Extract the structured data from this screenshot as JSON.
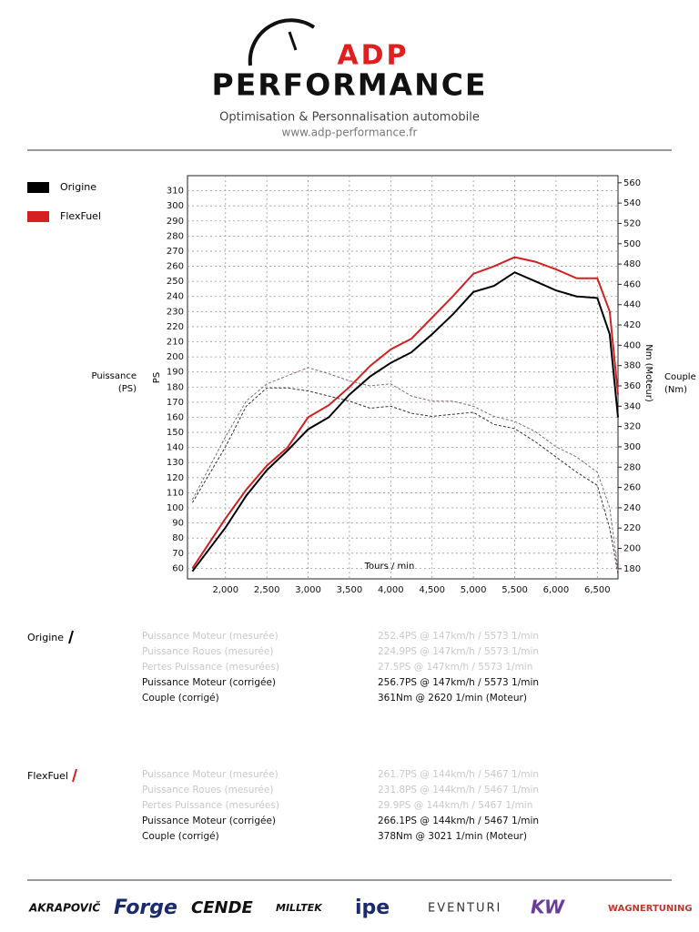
{
  "header": {
    "logo_top": "ADP",
    "logo_main": "PERFORMANCE",
    "tagline": "Optimisation & Personnalisation automobile",
    "url": "www.adp-performance.fr"
  },
  "chart_data": {
    "type": "line",
    "x_label": "Tours / min",
    "y_label": "PS",
    "y_title": [
      "Puissance",
      "(PS)"
    ],
    "y2_label": "Nm (Moteur)",
    "y2_title": [
      "Couple",
      "(Nm)"
    ],
    "x": [
      1600,
      2000,
      2250,
      2500,
      2750,
      3000,
      3250,
      3500,
      3750,
      4000,
      4250,
      4500,
      4750,
      5000,
      5250,
      5500,
      5750,
      6000,
      6250,
      6500,
      6650,
      6750
    ],
    "series": [
      {
        "name": "Origine",
        "color": "#000000",
        "values": [
          58,
          87,
          108,
          125,
          138,
          152,
          160,
          175,
          187,
          196,
          203,
          215,
          228,
          243,
          247,
          256,
          250,
          244,
          240,
          239,
          215,
          160
        ]
      },
      {
        "name": "FlexFuel",
        "color": "#d42020",
        "values": [
          60,
          93,
          112,
          128,
          140,
          160,
          168,
          180,
          194,
          205,
          212,
          226,
          240,
          255,
          260,
          266,
          263,
          258,
          252,
          252,
          230,
          175
        ]
      },
      {
        "name": "Origine",
        "color": "#333333",
        "axis": "y2",
        "dashed": true,
        "values": [
          245,
          300,
          340,
          358,
          358,
          355,
          350,
          345,
          338,
          340,
          333,
          330,
          332,
          334,
          322,
          318,
          305,
          290,
          275,
          262,
          220,
          175
        ]
      },
      {
        "name": "FlexFuel",
        "color": "#8a6a6a",
        "axis": "y2",
        "dashed": true,
        "values": [
          248,
          310,
          345,
          362,
          370,
          378,
          372,
          365,
          360,
          362,
          350,
          345,
          345,
          340,
          330,
          325,
          315,
          300,
          290,
          275,
          240,
          178
        ]
      }
    ],
    "xlim": [
      1540,
      6750
    ],
    "xticks": [
      {
        "value": 2000,
        "label": "2,000"
      },
      {
        "value": 2500,
        "label": "2,500"
      },
      {
        "value": 3000,
        "label": "3,000"
      },
      {
        "value": 3500,
        "label": "3,500"
      },
      {
        "value": 4000,
        "label": "4,000"
      },
      {
        "value": 4500,
        "label": "4,500"
      },
      {
        "value": 5000,
        "label": "5,000"
      },
      {
        "value": 5500,
        "label": "5,500"
      },
      {
        "value": 6000,
        "label": "6,000"
      },
      {
        "value": 6500,
        "label": "6,500"
      }
    ],
    "ylim": [
      53,
      320
    ],
    "yticks": [
      60,
      70,
      80,
      90,
      100,
      110,
      120,
      130,
      140,
      150,
      160,
      170,
      180,
      190,
      200,
      210,
      220,
      230,
      240,
      250,
      260,
      270,
      280,
      290,
      300,
      310
    ],
    "y2lim": [
      170,
      567
    ],
    "y2ticks": [
      180,
      200,
      220,
      240,
      260,
      280,
      300,
      320,
      340,
      360,
      380,
      400,
      420,
      440,
      460,
      480,
      500,
      520,
      540,
      560
    ],
    "grid": true,
    "legend": "left"
  },
  "results": [
    {
      "title": "Origine",
      "color": "#000000",
      "rows": [
        {
          "label": "Puissance Moteur (mesurée)",
          "value": "252.4PS @ 147km/h / 5573 1/min",
          "muted": true
        },
        {
          "label": "Puissance Roues (mesurée)",
          "value": "224.9PS @ 147km/h / 5573 1/min",
          "muted": true
        },
        {
          "label": "Pertes Puissance (mesurées)",
          "value": "27.5PS @ 147km/h / 5573 1/min",
          "muted": true
        },
        {
          "label": "Puissance Moteur (corrigée)",
          "value": "256.7PS @ 147km/h / 5573 1/min",
          "muted": false
        },
        {
          "label": "Couple (corrigé)",
          "value": "361Nm @ 2620 1/min (Moteur)",
          "muted": false
        }
      ]
    },
    {
      "title": "FlexFuel",
      "color": "#d42020",
      "rows": [
        {
          "label": "Puissance Moteur (mesurée)",
          "value": "261.7PS @ 144km/h / 5467 1/min",
          "muted": true
        },
        {
          "label": "Puissance Roues (mesurée)",
          "value": "231.8PS @ 144km/h / 5467 1/min",
          "muted": true
        },
        {
          "label": "Pertes Puissance (mesurées)",
          "value": "29.9PS @ 144km/h / 5467 1/min",
          "muted": true
        },
        {
          "label": "Puissance Moteur (corrigée)",
          "value": "266.1PS @ 144km/h / 5467 1/min",
          "muted": false
        },
        {
          "label": "Couple (corrigé)",
          "value": "378Nm @ 3021 1/min (Moteur)",
          "muted": false
        }
      ]
    }
  ],
  "sponsors": [
    "AKRAPOVIČ",
    "Forge",
    "CENDE",
    "MILLTEK",
    "ipe",
    "EVENTURI",
    "KW",
    "WAGNERTUNING"
  ]
}
